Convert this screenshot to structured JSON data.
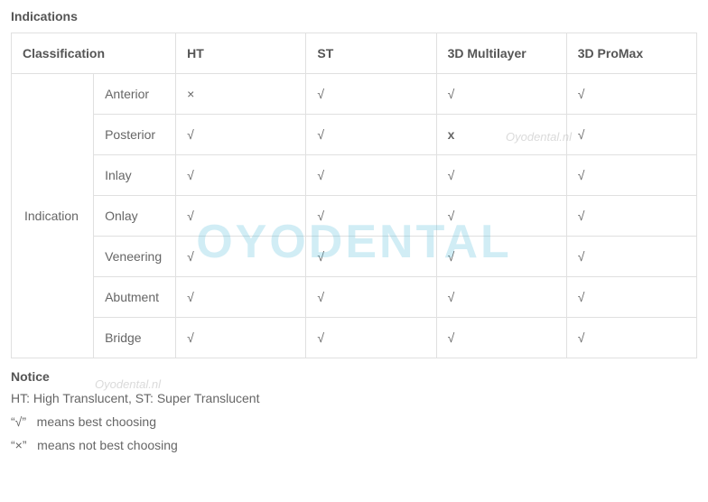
{
  "title": "Indications",
  "table": {
    "headers": {
      "classification": "Classification",
      "cols": [
        "HT",
        "ST",
        "3D Multilayer",
        "3D ProMax"
      ]
    },
    "group_label": "Indication",
    "rows": [
      {
        "label": "Anterior",
        "values": [
          "×",
          "√",
          "√",
          "√"
        ],
        "bold_idx": null
      },
      {
        "label": "Posterior",
        "values": [
          "√",
          "√",
          "x",
          "√"
        ],
        "bold_idx": 2
      },
      {
        "label": "Inlay",
        "values": [
          "√",
          "√",
          "√",
          "√"
        ],
        "bold_idx": null
      },
      {
        "label": "Onlay",
        "values": [
          "√",
          "√",
          "√",
          "√"
        ],
        "bold_idx": null
      },
      {
        "label": "Veneering",
        "values": [
          "√",
          "√",
          "√",
          "√"
        ],
        "bold_idx": null
      },
      {
        "label": "Abutment",
        "values": [
          "√",
          "√",
          "√",
          "√"
        ],
        "bold_idx": null
      },
      {
        "label": "Bridge",
        "values": [
          "√",
          "√",
          "√",
          "√"
        ],
        "bold_idx": null
      }
    ]
  },
  "notice": {
    "title": "Notice",
    "lines": [
      "HT: High Translucent, ST: Super Translucent",
      "“√”   means best choosing",
      "“×”   means not best choosing"
    ]
  },
  "watermark": {
    "big": "OYODENTAL",
    "small": "Oyodental.nl"
  },
  "colors": {
    "border": "#e0e0e0",
    "text": "#555555",
    "cell_text": "#666666",
    "background": "#ffffff"
  }
}
